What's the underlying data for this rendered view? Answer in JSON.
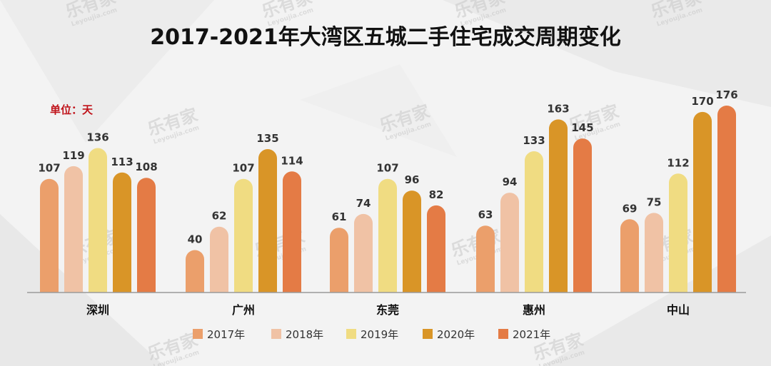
{
  "chart_data": {
    "type": "bar",
    "title": "2017-2021年大湾区五城二手住宅成交周期变化",
    "unit_label": "单位：天",
    "categories": [
      "深圳",
      "广州",
      "东莞",
      "惠州",
      "中山"
    ],
    "series": [
      {
        "name": "2017年",
        "color": "#eb9f6b",
        "values": [
          107,
          40,
          61,
          63,
          69
        ]
      },
      {
        "name": "2018年",
        "color": "#f0c2a5",
        "values": [
          119,
          62,
          74,
          94,
          75
        ]
      },
      {
        "name": "2019年",
        "color": "#f0dc82",
        "values": [
          136,
          107,
          107,
          133,
          112
        ]
      },
      {
        "name": "2020年",
        "color": "#d99527",
        "values": [
          113,
          135,
          96,
          163,
          170
        ]
      },
      {
        "name": "2021年",
        "color": "#e47b45",
        "values": [
          108,
          114,
          82,
          145,
          176
        ]
      }
    ],
    "ylim": [
      0,
      200
    ],
    "grid": false,
    "legend_position": "bottom"
  },
  "watermark": {
    "brand": "乐有家",
    "sub": "Leyoujia.com"
  }
}
